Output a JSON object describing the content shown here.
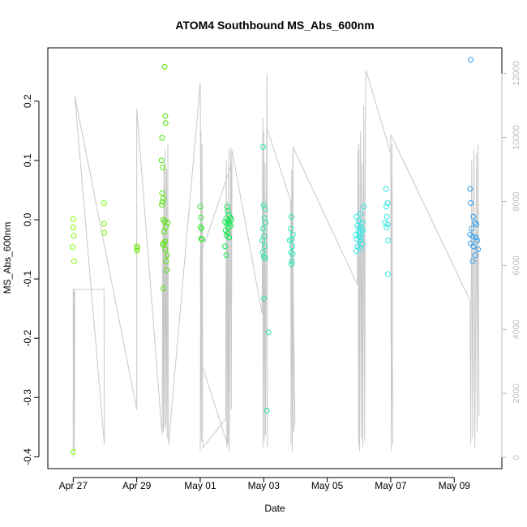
{
  "chart_data": {
    "type": "scatter",
    "title": "ATOM4 Southbound MS_Abs_600nm",
    "xlabel": "Date",
    "ylabel": "MS_Abs_600nm",
    "xlim_days": [
      -0.8,
      13.5
    ],
    "ylim": [
      -0.42,
      0.29
    ],
    "x_ticks": [
      {
        "label": "Apr 27",
        "day": 0
      },
      {
        "label": "Apr 29",
        "day": 2
      },
      {
        "label": "May 01",
        "day": 4
      },
      {
        "label": "May 03",
        "day": 6
      },
      {
        "label": "May 05",
        "day": 8
      },
      {
        "label": "May 07",
        "day": 10
      },
      {
        "label": "May 09",
        "day": 12
      }
    ],
    "y_ticks": [
      {
        "label": "-0.4",
        "value": -0.4
      },
      {
        "label": "-0.3",
        "value": -0.3
      },
      {
        "label": "-0.2",
        "value": -0.2
      },
      {
        "label": "-0.1",
        "value": -0.1
      },
      {
        "label": "0.0",
        "value": 0.0
      },
      {
        "label": "0.1",
        "value": 0.1
      },
      {
        "label": "0.2",
        "value": 0.2
      }
    ],
    "right_axis": {
      "label": "",
      "ylim": [
        -350,
        12800
      ],
      "ticks": [
        {
          "label": "0",
          "value": 0
        },
        {
          "label": "2000",
          "value": 2000
        },
        {
          "label": "4000",
          "value": 4000
        },
        {
          "label": "6000",
          "value": 6000
        },
        {
          "label": "8000",
          "value": 8000
        },
        {
          "label": "10000",
          "value": 10000
        },
        {
          "label": "12000",
          "value": 12000
        }
      ]
    },
    "points": [
      {
        "day": 0.0,
        "value": 0.001,
        "color": "#7cfc00"
      },
      {
        "day": 0.0,
        "value": -0.013,
        "color": "#7cfc00"
      },
      {
        "day": 0.02,
        "value": -0.027,
        "color": "#7cfc00"
      },
      {
        "day": -0.02,
        "value": -0.046,
        "color": "#7cfc00"
      },
      {
        "day": 0.03,
        "value": -0.07,
        "color": "#7cfc00"
      },
      {
        "day": 0.0,
        "value": -0.392,
        "color": "#7cfc00"
      },
      {
        "day": 0.97,
        "value": 0.028,
        "color": "#7cfc00"
      },
      {
        "day": 0.97,
        "value": -0.007,
        "color": "#7cfc00"
      },
      {
        "day": 0.98,
        "value": -0.022,
        "color": "#7cfc00"
      },
      {
        "day": 2.0,
        "value": -0.045,
        "color": "#66e800"
      },
      {
        "day": 2.02,
        "value": -0.048,
        "color": "#66e800"
      },
      {
        "day": 2.0,
        "value": -0.052,
        "color": "#66e800"
      },
      {
        "day": 2.88,
        "value": 0.258,
        "color": "#4ee600"
      },
      {
        "day": 2.9,
        "value": 0.175,
        "color": "#4ee600"
      },
      {
        "day": 2.91,
        "value": 0.163,
        "color": "#4ee600"
      },
      {
        "day": 2.8,
        "value": 0.138,
        "color": "#4ee600"
      },
      {
        "day": 2.78,
        "value": 0.1,
        "color": "#4ee600"
      },
      {
        "day": 2.82,
        "value": 0.088,
        "color": "#4ee600"
      },
      {
        "day": 2.8,
        "value": 0.045,
        "color": "#4ee600"
      },
      {
        "day": 2.84,
        "value": 0.036,
        "color": "#4ee600"
      },
      {
        "day": 2.81,
        "value": 0.03,
        "color": "#4ee600"
      },
      {
        "day": 2.79,
        "value": 0.025,
        "color": "#4ee600"
      },
      {
        "day": 2.83,
        "value": 0.0,
        "color": "#4ee600"
      },
      {
        "day": 2.88,
        "value": -0.003,
        "color": "#4ee600"
      },
      {
        "day": 2.98,
        "value": -0.005,
        "color": "#4ee600"
      },
      {
        "day": 2.92,
        "value": -0.012,
        "color": "#4ee600"
      },
      {
        "day": 2.86,
        "value": -0.02,
        "color": "#4ee600"
      },
      {
        "day": 2.9,
        "value": -0.037,
        "color": "#4ee600"
      },
      {
        "day": 2.85,
        "value": -0.04,
        "color": "#4ee600"
      },
      {
        "day": 2.82,
        "value": -0.042,
        "color": "#4ee600"
      },
      {
        "day": 2.9,
        "value": -0.05,
        "color": "#4ee600"
      },
      {
        "day": 2.96,
        "value": -0.06,
        "color": "#4ee600"
      },
      {
        "day": 2.92,
        "value": -0.07,
        "color": "#4ee600"
      },
      {
        "day": 2.95,
        "value": -0.085,
        "color": "#4ee600"
      },
      {
        "day": 2.84,
        "value": -0.116,
        "color": "#4ee600"
      },
      {
        "day": 4.0,
        "value": 0.022,
        "color": "#2ee82e"
      },
      {
        "day": 4.02,
        "value": 0.004,
        "color": "#2ee82e"
      },
      {
        "day": 4.01,
        "value": -0.012,
        "color": "#2ee82e"
      },
      {
        "day": 4.04,
        "value": -0.015,
        "color": "#2ee82e"
      },
      {
        "day": 4.03,
        "value": -0.032,
        "color": "#2ee82e"
      },
      {
        "day": 4.06,
        "value": -0.033,
        "color": "#2ee82e"
      },
      {
        "day": 4.85,
        "value": 0.022,
        "color": "#10e84e"
      },
      {
        "day": 4.87,
        "value": 0.015,
        "color": "#10e84e"
      },
      {
        "day": 4.9,
        "value": 0.008,
        "color": "#10e84e"
      },
      {
        "day": 4.95,
        "value": 0.004,
        "color": "#10e84e"
      },
      {
        "day": 4.82,
        "value": 0.002,
        "color": "#10e84e"
      },
      {
        "day": 4.98,
        "value": 0.0,
        "color": "#10e84e"
      },
      {
        "day": 4.88,
        "value": -0.002,
        "color": "#10e84e"
      },
      {
        "day": 4.78,
        "value": -0.004,
        "color": "#10e84e"
      },
      {
        "day": 4.92,
        "value": -0.006,
        "color": "#10e84e"
      },
      {
        "day": 4.84,
        "value": -0.008,
        "color": "#10e84e"
      },
      {
        "day": 4.96,
        "value": -0.01,
        "color": "#10e84e"
      },
      {
        "day": 4.89,
        "value": -0.013,
        "color": "#10e84e"
      },
      {
        "day": 4.8,
        "value": -0.018,
        "color": "#10e84e"
      },
      {
        "day": 4.86,
        "value": -0.022,
        "color": "#10e84e"
      },
      {
        "day": 4.83,
        "value": -0.027,
        "color": "#10e84e"
      },
      {
        "day": 4.91,
        "value": -0.03,
        "color": "#10e84e"
      },
      {
        "day": 4.78,
        "value": -0.045,
        "color": "#10e84e"
      },
      {
        "day": 4.82,
        "value": -0.06,
        "color": "#10e84e"
      },
      {
        "day": 5.98,
        "value": 0.123,
        "color": "#20e8a0"
      },
      {
        "day": 6.0,
        "value": 0.025,
        "color": "#20e8a0"
      },
      {
        "day": 6.04,
        "value": 0.018,
        "color": "#20e8a0"
      },
      {
        "day": 6.02,
        "value": 0.003,
        "color": "#20e8a0"
      },
      {
        "day": 6.06,
        "value": -0.005,
        "color": "#20e8a0"
      },
      {
        "day": 5.98,
        "value": -0.015,
        "color": "#20e8a0"
      },
      {
        "day": 6.01,
        "value": -0.028,
        "color": "#20e8a0"
      },
      {
        "day": 5.96,
        "value": -0.035,
        "color": "#20e8a0"
      },
      {
        "day": 6.03,
        "value": -0.045,
        "color": "#20e8a0"
      },
      {
        "day": 5.97,
        "value": -0.055,
        "color": "#20e8a0"
      },
      {
        "day": 6.0,
        "value": -0.062,
        "color": "#20e8a0"
      },
      {
        "day": 6.05,
        "value": -0.065,
        "color": "#20e8a0"
      },
      {
        "day": 6.01,
        "value": -0.133,
        "color": "#20e8a0"
      },
      {
        "day": 6.15,
        "value": -0.19,
        "color": "#20e8a0"
      },
      {
        "day": 6.1,
        "value": -0.322,
        "color": "#20e8a0"
      },
      {
        "day": 6.87,
        "value": 0.005,
        "color": "#20e8b0"
      },
      {
        "day": 6.85,
        "value": -0.015,
        "color": "#20e8b0"
      },
      {
        "day": 6.92,
        "value": -0.025,
        "color": "#20e8b0"
      },
      {
        "day": 6.88,
        "value": -0.033,
        "color": "#20e8b0"
      },
      {
        "day": 6.82,
        "value": -0.035,
        "color": "#20e8b0"
      },
      {
        "day": 6.9,
        "value": -0.045,
        "color": "#20e8b0"
      },
      {
        "day": 6.86,
        "value": -0.055,
        "color": "#20e8b0"
      },
      {
        "day": 6.91,
        "value": -0.058,
        "color": "#20e8b0"
      },
      {
        "day": 6.89,
        "value": -0.07,
        "color": "#20e8b0"
      },
      {
        "day": 6.87,
        "value": -0.075,
        "color": "#20e8b0"
      },
      {
        "day": 8.92,
        "value": 0.005,
        "color": "#2ee8e8"
      },
      {
        "day": 9.15,
        "value": 0.022,
        "color": "#2ee8e8"
      },
      {
        "day": 9.05,
        "value": 0.01,
        "color": "#2ee8e8"
      },
      {
        "day": 9.0,
        "value": -0.002,
        "color": "#2ee8e8"
      },
      {
        "day": 9.1,
        "value": -0.005,
        "color": "#2ee8e8"
      },
      {
        "day": 8.95,
        "value": -0.01,
        "color": "#2ee8e8"
      },
      {
        "day": 9.02,
        "value": -0.013,
        "color": "#2ee8e8"
      },
      {
        "day": 9.08,
        "value": -0.016,
        "color": "#2ee8e8"
      },
      {
        "day": 9.12,
        "value": -0.018,
        "color": "#2ee8e8"
      },
      {
        "day": 8.98,
        "value": -0.02,
        "color": "#2ee8e8"
      },
      {
        "day": 9.05,
        "value": -0.023,
        "color": "#2ee8e8"
      },
      {
        "day": 8.9,
        "value": -0.025,
        "color": "#2ee8e8"
      },
      {
        "day": 9.0,
        "value": -0.028,
        "color": "#2ee8e8"
      },
      {
        "day": 9.07,
        "value": -0.03,
        "color": "#2ee8e8"
      },
      {
        "day": 8.94,
        "value": -0.033,
        "color": "#2ee8e8"
      },
      {
        "day": 9.03,
        "value": -0.035,
        "color": "#2ee8e8"
      },
      {
        "day": 9.1,
        "value": -0.04,
        "color": "#2ee8e8"
      },
      {
        "day": 8.96,
        "value": -0.045,
        "color": "#2ee8e8"
      },
      {
        "day": 9.05,
        "value": -0.048,
        "color": "#2ee8e8"
      },
      {
        "day": 8.92,
        "value": -0.053,
        "color": "#2ee8e8"
      },
      {
        "day": 9.85,
        "value": 0.052,
        "color": "#2ee8e0"
      },
      {
        "day": 9.9,
        "value": 0.028,
        "color": "#2ee8e0"
      },
      {
        "day": 9.86,
        "value": 0.022,
        "color": "#2ee8e0"
      },
      {
        "day": 9.88,
        "value": 0.005,
        "color": "#2ee8e0"
      },
      {
        "day": 9.82,
        "value": -0.005,
        "color": "#2ee8e0"
      },
      {
        "day": 9.9,
        "value": -0.008,
        "color": "#2ee8e0"
      },
      {
        "day": 9.87,
        "value": -0.013,
        "color": "#2ee8e0"
      },
      {
        "day": 9.92,
        "value": -0.035,
        "color": "#2ee8e0"
      },
      {
        "day": 9.91,
        "value": -0.092,
        "color": "#2ee8e0"
      },
      {
        "day": 12.52,
        "value": 0.27,
        "color": "#2e9ef0"
      },
      {
        "day": 12.5,
        "value": 0.052,
        "color": "#2e9ef0"
      },
      {
        "day": 12.52,
        "value": 0.028,
        "color": "#2e9ef0"
      },
      {
        "day": 12.6,
        "value": 0.005,
        "color": "#2e9ef0"
      },
      {
        "day": 12.65,
        "value": -0.005,
        "color": "#2e9ef0"
      },
      {
        "day": 12.7,
        "value": -0.008,
        "color": "#2e9ef0"
      },
      {
        "day": 12.55,
        "value": -0.015,
        "color": "#2e9ef0"
      },
      {
        "day": 12.5,
        "value": -0.025,
        "color": "#2e9ef0"
      },
      {
        "day": 12.58,
        "value": -0.028,
        "color": "#2e9ef0"
      },
      {
        "day": 12.68,
        "value": -0.03,
        "color": "#2e9ef0"
      },
      {
        "day": 12.72,
        "value": -0.035,
        "color": "#2e9ef0"
      },
      {
        "day": 12.52,
        "value": -0.04,
        "color": "#2e9ef0"
      },
      {
        "day": 12.6,
        "value": -0.045,
        "color": "#2e9ef0"
      },
      {
        "day": 12.75,
        "value": -0.05,
        "color": "#2e9ef0"
      },
      {
        "day": 12.66,
        "value": -0.06,
        "color": "#2e9ef0"
      },
      {
        "day": 12.58,
        "value": -0.07,
        "color": "#2e9ef0"
      }
    ],
    "track_series": {
      "name": "right-axis trace",
      "color": "#c8c8c8",
      "points": [
        [
          0.0,
          5300
        ],
        [
          0.0,
          10
        ],
        [
          0.02,
          5200
        ],
        [
          0.04,
          200
        ],
        [
          0.05,
          5250
        ],
        [
          0.97,
          5250
        ],
        [
          0.98,
          400
        ],
        [
          0.05,
          11300
        ],
        [
          2.0,
          1500
        ],
        [
          2.0,
          10900
        ],
        [
          2.8,
          700
        ],
        [
          2.82,
          7500
        ],
        [
          2.84,
          800
        ],
        [
          2.86,
          9200
        ],
        [
          2.88,
          900
        ],
        [
          2.9,
          9600
        ],
        [
          2.92,
          1000
        ],
        [
          2.94,
          9000
        ],
        [
          2.96,
          600
        ],
        [
          2.98,
          9800
        ],
        [
          3.0,
          400
        ],
        [
          4.0,
          11700
        ],
        [
          4.02,
          5900
        ],
        [
          4.0,
          200
        ],
        [
          4.02,
          10200
        ],
        [
          4.04,
          500
        ],
        [
          4.06,
          9800
        ],
        [
          4.08,
          300
        ],
        [
          4.8,
          1200
        ],
        [
          4.82,
          9300
        ],
        [
          4.84,
          300
        ],
        [
          4.86,
          8000
        ],
        [
          4.88,
          400
        ],
        [
          4.9,
          9600
        ],
        [
          4.92,
          200
        ],
        [
          4.96,
          9700
        ],
        [
          4.98,
          1500
        ],
        [
          5.0,
          9200
        ],
        [
          4.0,
          6300
        ],
        [
          4.02,
          3000
        ],
        [
          4.86,
          400
        ],
        [
          5.0,
          9600
        ],
        [
          5.95,
          4500
        ],
        [
          5.97,
          10600
        ],
        [
          5.98,
          300
        ],
        [
          6.0,
          10200
        ],
        [
          6.02,
          500
        ],
        [
          6.04,
          9200
        ],
        [
          6.06,
          700
        ],
        [
          6.1,
          12000
        ],
        [
          6.12,
          300
        ],
        [
          6.1,
          10300
        ],
        [
          6.85,
          8000
        ],
        [
          6.86,
          400
        ],
        [
          6.88,
          9000
        ],
        [
          6.9,
          200
        ],
        [
          6.92,
          9500
        ],
        [
          6.94,
          800
        ],
        [
          6.98,
          1200
        ],
        [
          6.9,
          7500
        ],
        [
          6.92,
          9700
        ],
        [
          8.95,
          5400
        ],
        [
          8.97,
          9600
        ],
        [
          8.99,
          400
        ],
        [
          9.0,
          9800
        ],
        [
          9.02,
          200
        ],
        [
          9.05,
          10200
        ],
        [
          9.08,
          600
        ],
        [
          9.1,
          9200
        ],
        [
          9.12,
          300
        ],
        [
          9.15,
          11000
        ],
        [
          9.18,
          500
        ],
        [
          9.2,
          10200
        ],
        [
          9.22,
          12100
        ],
        [
          10.0,
          9500
        ],
        [
          10.02,
          200
        ],
        [
          10.04,
          9800
        ],
        [
          10.06,
          400
        ],
        [
          10.0,
          10100
        ],
        [
          12.5,
          4900
        ],
        [
          12.52,
          400
        ],
        [
          12.55,
          9300
        ],
        [
          12.58,
          600
        ],
        [
          12.62,
          9600
        ],
        [
          12.65,
          300
        ],
        [
          12.7,
          9500
        ],
        [
          12.72,
          800
        ],
        [
          12.75,
          9800
        ],
        [
          12.78,
          1300
        ]
      ]
    }
  }
}
